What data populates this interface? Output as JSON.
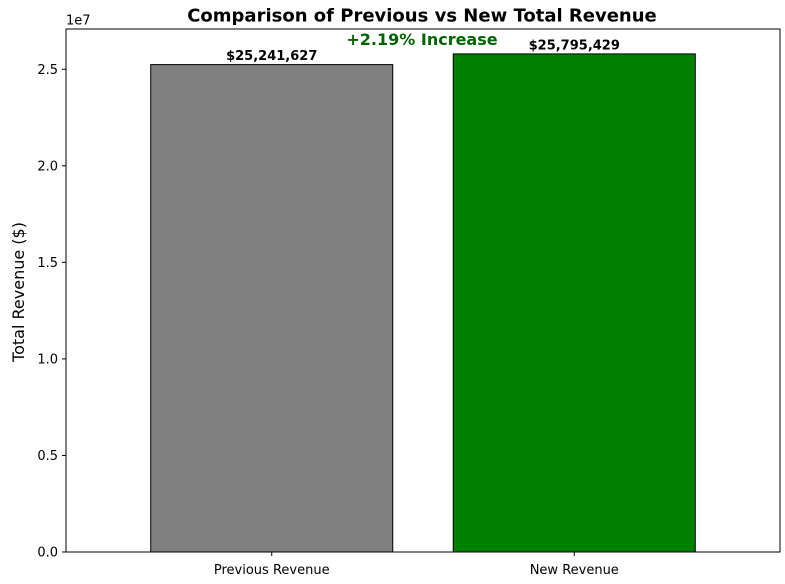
{
  "chart_data": {
    "type": "bar",
    "title": "Comparison of Previous vs New Total Revenue",
    "xlabel": "",
    "ylabel": "Total Revenue ($)",
    "axis_offset_label": "1e7",
    "categories": [
      "Previous Revenue",
      "New Revenue"
    ],
    "values": [
      25241627,
      25795429
    ],
    "data_labels": [
      "$25,241,627",
      "$25,795,429"
    ],
    "colors": [
      "#808080",
      "#008000"
    ],
    "edge_color": "#000000",
    "ylim": [
      0,
      27085000
    ],
    "yticks": [
      0,
      5000000,
      10000000,
      15000000,
      20000000,
      25000000
    ],
    "ytick_labels": [
      "0.0",
      "0.5",
      "1.0",
      "1.5",
      "2.0",
      "2.5"
    ],
    "annotation": {
      "text": "+2.19% Increase",
      "color": "#006400"
    },
    "grid": false,
    "legend": false
  }
}
